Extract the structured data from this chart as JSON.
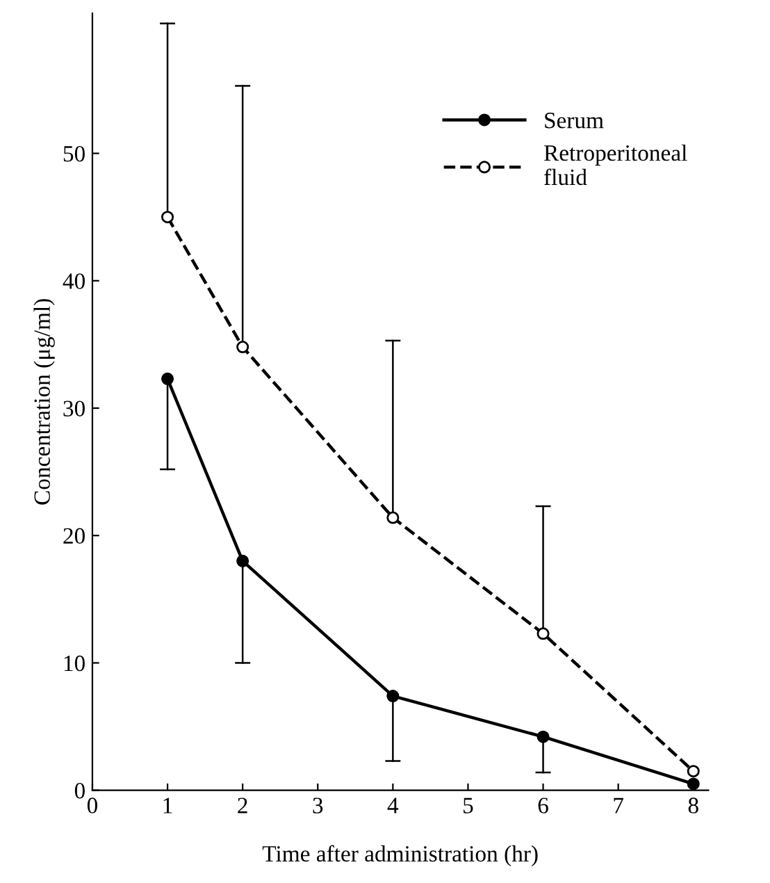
{
  "chart_data": {
    "type": "line",
    "xlabel": "Time after administration (hr)",
    "ylabel": "Concentration (μg/ml)",
    "x": [
      1,
      2,
      4,
      6,
      8
    ],
    "series": [
      {
        "name": "Serum",
        "color": "#000000",
        "values": [
          32.3,
          18,
          7.4,
          4.2,
          0.5
        ],
        "errors": [
          [
            25.2,
            32.3
          ],
          [
            10,
            18
          ],
          [
            2.3,
            7.4
          ],
          [
            1.4,
            4.2
          ],
          null
        ],
        "marker": "circle",
        "line_style": "solid"
      },
      {
        "name": "Retroperitoneal\nfluid",
        "color": "#000000",
        "values": [
          45,
          34.8,
          21.4,
          12.3,
          1.5
        ],
        "errors": [
          [
            45,
            60.2
          ],
          [
            34.8,
            55.3
          ],
          [
            21.4,
            35.3
          ],
          [
            12.3,
            22.3
          ],
          null
        ],
        "marker": "circle",
        "line_style": "dashed"
      }
    ],
    "xlim": [
      0,
      8.2
    ],
    "ylim": [
      0,
      61
    ],
    "xticks": [
      0,
      1,
      2,
      3,
      4,
      5,
      6,
      7,
      8
    ],
    "yticks": [
      0,
      10,
      20,
      30,
      40,
      50
    ],
    "grid": false,
    "legend": "top right"
  }
}
